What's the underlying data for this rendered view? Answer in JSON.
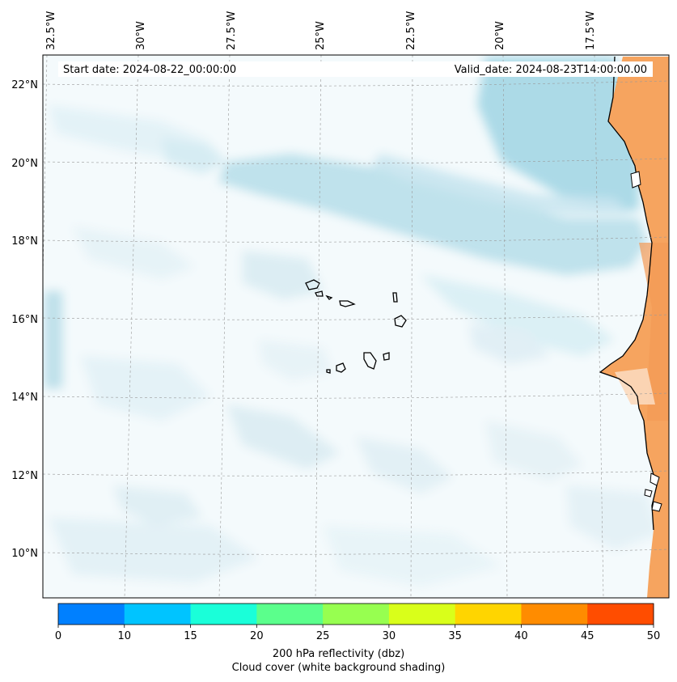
{
  "header": {
    "start_date": "Start date: 2024-08-22_00:00:00",
    "valid_date": "Valid_date: 2024-08-23T14:00:00.00"
  },
  "map": {
    "lon_labels": [
      "32.5°W",
      "30°W",
      "27.5°W",
      "25°W",
      "22.5°W",
      "20°W",
      "17.5°W"
    ],
    "lat_labels": [
      "22°N",
      "20°N",
      "18°N",
      "16°N",
      "14°N",
      "12°N",
      "10°N"
    ],
    "gridlines": "dashed",
    "background": "cloud cover shading (white to light blue)",
    "overlay": "land in orange shades on eastern edge (West Africa)"
  },
  "colorbar": {
    "ticks": [
      "0",
      "10",
      "15",
      "20",
      "25",
      "30",
      "35",
      "40",
      "45",
      "50"
    ],
    "colors": [
      "#0080ff",
      "#00c4ff",
      "#1affd9",
      "#5bff8c",
      "#97ff50",
      "#d9ff1a",
      "#ffd500",
      "#ff8c00",
      "#ff4d00"
    ],
    "label": "200 hPa reflectivity (dbz)",
    "sublabel": "Cloud cover (white background shading)"
  }
}
